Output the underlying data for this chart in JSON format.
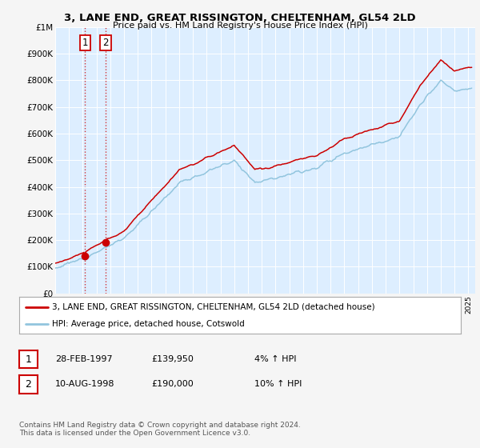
{
  "title": "3, LANE END, GREAT RISSINGTON, CHELTENHAM, GL54 2LD",
  "subtitle": "Price paid vs. HM Land Registry's House Price Index (HPI)",
  "legend_line1": "3, LANE END, GREAT RISSINGTON, CHELTENHAM, GL54 2LD (detached house)",
  "legend_line2": "HPI: Average price, detached house, Cotswold",
  "footnote": "Contains HM Land Registry data © Crown copyright and database right 2024.\nThis data is licensed under the Open Government Licence v3.0.",
  "purchase1_date": "28-FEB-1997",
  "purchase1_price": 139950,
  "purchase1_hpi": "4% ↑ HPI",
  "purchase2_date": "10-AUG-1998",
  "purchase2_price": 190000,
  "purchase2_hpi": "10% ↑ HPI",
  "hpi_color": "#92c5de",
  "price_color": "#cc0000",
  "marker_color": "#cc0000",
  "fig_bg": "#f0f0f0",
  "plot_bg": "#ddeeff",
  "grid_color": "#ffffff",
  "ylim": [
    0,
    1000000
  ],
  "xmin": 1995.0,
  "xmax": 2025.5,
  "purchase1_year": 1997.15,
  "purchase2_year": 1998.6
}
